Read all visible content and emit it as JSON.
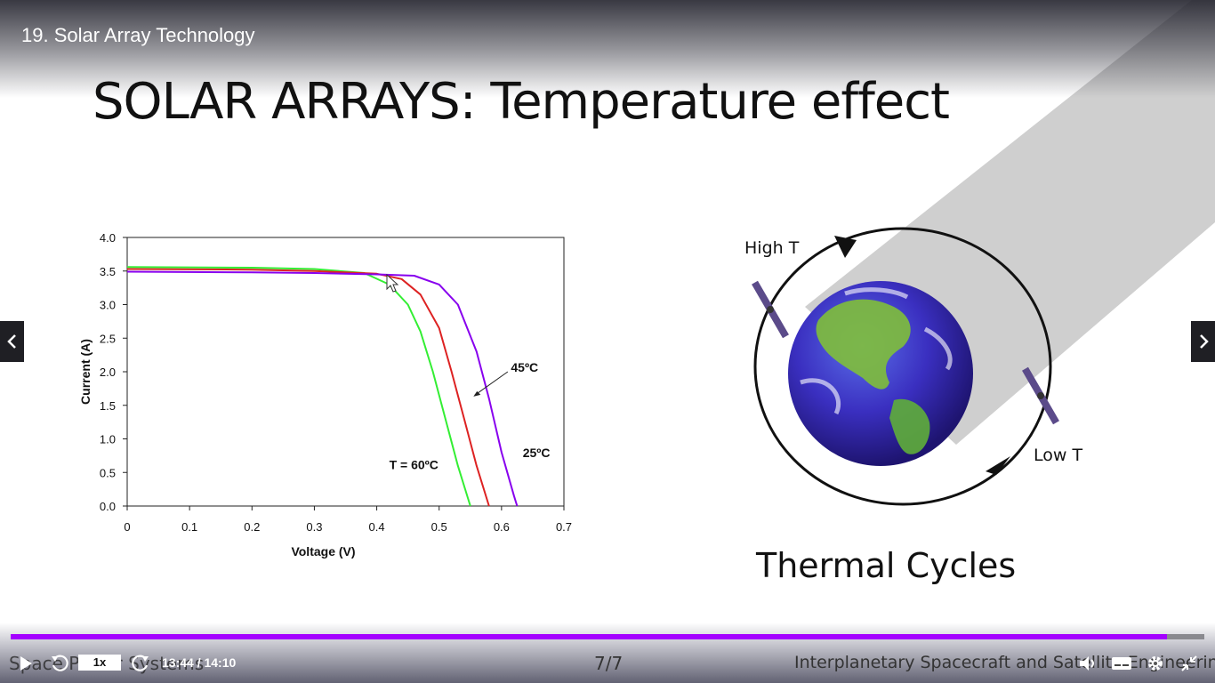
{
  "player": {
    "video_title": "19. Solar Array Technology",
    "current_time": "13:44",
    "separator": "/",
    "duration": "14:10",
    "progress_fraction": 0.969,
    "playback_speed": "1x",
    "accent_color": "#a400ff"
  },
  "slide": {
    "heading": "SOLAR ARRAYS: Temperature effect",
    "thermal": {
      "high_label": "High T",
      "low_label": "Low T",
      "title": "Thermal Cycles"
    },
    "footer": {
      "left_text": "Space Power Systems",
      "page": "7/7",
      "right_text": "Interplanetary Spacecraft and Satellite Engineering"
    }
  },
  "chart_data": {
    "type": "line",
    "xlabel": "Voltage (V)",
    "ylabel": "Current (A)",
    "xlim": [
      0,
      0.7
    ],
    "ylim": [
      0,
      4.0
    ],
    "x_ticks": [
      "0",
      "0.1",
      "0.2",
      "0.3",
      "0.4",
      "0.5",
      "0.6",
      "0.7"
    ],
    "y_ticks": [
      "0.0",
      "0.5",
      "1.0",
      "1.5",
      "2.0",
      "2.5",
      "3.0",
      "3.5",
      "4.0"
    ],
    "series": [
      {
        "name": "T = 60°C",
        "color": "#33ee33",
        "x": [
          0,
          0.2,
          0.3,
          0.38,
          0.42,
          0.45,
          0.47,
          0.49,
          0.51,
          0.53,
          0.55
        ],
        "y": [
          3.56,
          3.55,
          3.53,
          3.47,
          3.3,
          3.0,
          2.6,
          2.0,
          1.3,
          0.6,
          0.0
        ]
      },
      {
        "name": "45°C",
        "color": "#dd2222",
        "x": [
          0,
          0.2,
          0.3,
          0.4,
          0.44,
          0.47,
          0.5,
          0.52,
          0.54,
          0.56,
          0.58
        ],
        "y": [
          3.53,
          3.52,
          3.5,
          3.46,
          3.38,
          3.15,
          2.65,
          2.0,
          1.3,
          0.6,
          0.0
        ]
      },
      {
        "name": "25°C",
        "color": "#8800ee",
        "x": [
          0,
          0.2,
          0.3,
          0.4,
          0.46,
          0.5,
          0.53,
          0.56,
          0.58,
          0.6,
          0.62,
          0.625
        ],
        "y": [
          3.49,
          3.48,
          3.47,
          3.45,
          3.43,
          3.3,
          3.0,
          2.3,
          1.6,
          0.8,
          0.15,
          0.0
        ]
      }
    ],
    "annotations": [
      {
        "text": "T = 60ºC"
      },
      {
        "text": "45ºC"
      },
      {
        "text": "25ºC"
      }
    ],
    "grid": false
  }
}
